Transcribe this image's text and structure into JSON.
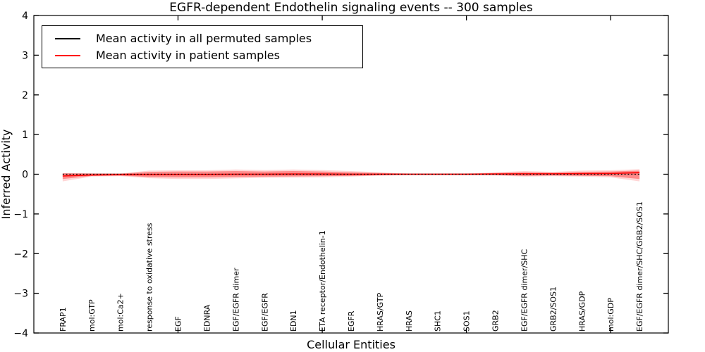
{
  "chart_data": {
    "type": "line",
    "title": "EGFR-dependent Endothelin signaling events -- 300 samples",
    "xlabel": "Cellular Entities",
    "ylabel": "Inferred Activity",
    "ylim": [
      -4,
      4
    ],
    "yticks": [
      4,
      3,
      2,
      1,
      0,
      -1,
      -2,
      -3,
      -4
    ],
    "ytick_labels": [
      "4",
      "3",
      "2",
      "1",
      "0",
      "−1",
      "−2",
      "−3",
      "−4"
    ],
    "xtick_category_indices": [
      4,
      9,
      14,
      19
    ],
    "grid": false,
    "legend_position": "upper left",
    "categories": [
      "FRAP1",
      "mol:GTP",
      "mol:Ca2+",
      "response to oxidative stress",
      "EGF",
      "EDNRA",
      "EGF/EGFR dimer",
      "EGF/EGFR",
      "EDN1",
      "ETA receptor/Endothelin-1",
      "EGFR",
      "HRAS/GTP",
      "HRAS",
      "SHC1",
      "SOS1",
      "GRB2",
      "EGF/EGFR dimer/SHC",
      "GRB2/SOS1",
      "HRAS/GDP",
      "mol:GDP",
      "EGF/EGFR dimer/SHC/GRB2/SOS1"
    ],
    "series": [
      {
        "name": "Mean activity in all permuted samples",
        "color": "#000000",
        "line_style": "dotted",
        "values": [
          0,
          0,
          0,
          0,
          0,
          0,
          0,
          0,
          0,
          0,
          0,
          0,
          0,
          0,
          0,
          0,
          0,
          0,
          0,
          0,
          0
        ],
        "band_halfwidth": 0.025,
        "band_color": "rgba(0,0,0,0.13)"
      },
      {
        "name": "Mean activity in patient samples",
        "color": "#ff0000",
        "line_style": "solid",
        "values": [
          -0.045,
          -0.02,
          -0.01,
          -0.01,
          -0.005,
          -0.005,
          0,
          0,
          0.005,
          0.005,
          0,
          0,
          0,
          0,
          0,
          0.005,
          0.01,
          0.01,
          0.015,
          0.02,
          0.04
        ],
        "band_inner": {
          "color": "rgba(255,0,0,0.35)",
          "upper": [
            0.02,
            0.015,
            0.015,
            0.06,
            0.07,
            0.07,
            0.08,
            0.07,
            0.08,
            0.07,
            0.05,
            0.03,
            0.012,
            0.012,
            0.015,
            0.03,
            0.05,
            0.04,
            0.06,
            0.07,
            0.09
          ],
          "lower": [
            -0.12,
            -0.045,
            -0.035,
            -0.07,
            -0.08,
            -0.08,
            -0.07,
            -0.06,
            -0.055,
            -0.05,
            -0.04,
            -0.025,
            -0.015,
            -0.015,
            -0.015,
            -0.02,
            -0.04,
            -0.03,
            -0.04,
            -0.05,
            -0.12
          ]
        },
        "band_outer": {
          "color": "rgba(255,0,0,0.16)",
          "upper": [
            0.03,
            0.025,
            0.02,
            0.09,
            0.1,
            0.1,
            0.12,
            0.105,
            0.12,
            0.105,
            0.08,
            0.05,
            0.02,
            0.02,
            0.025,
            0.05,
            0.08,
            0.06,
            0.09,
            0.1,
            0.13
          ],
          "lower": [
            -0.18,
            -0.06,
            -0.05,
            -0.1,
            -0.12,
            -0.12,
            -0.105,
            -0.09,
            -0.085,
            -0.08,
            -0.06,
            -0.035,
            -0.02,
            -0.02,
            -0.025,
            -0.03,
            -0.06,
            -0.05,
            -0.06,
            -0.08,
            -0.18
          ]
        }
      }
    ],
    "legend": [
      {
        "label": "Mean activity in all permuted samples",
        "color": "#000000"
      },
      {
        "label": "Mean activity in patient samples",
        "color": "#ff0000"
      }
    ]
  }
}
